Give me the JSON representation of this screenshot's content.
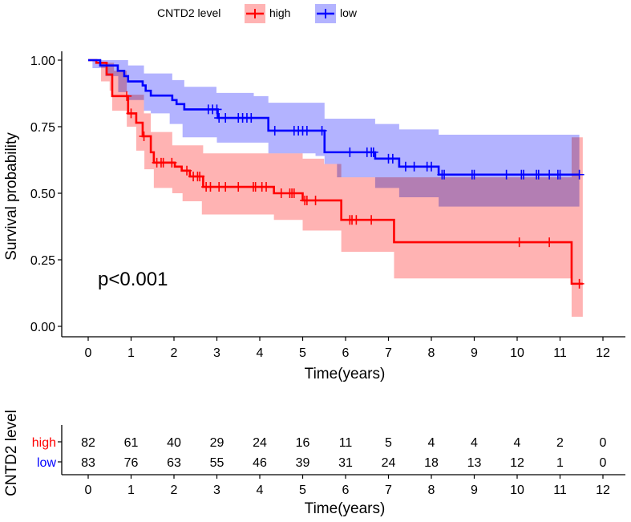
{
  "chart_data": {
    "type": "line",
    "subtype": "kaplan-meier",
    "legend": {
      "title": "CNTD2 level",
      "entries": [
        "high",
        "low"
      ],
      "placement": "top"
    },
    "colors": {
      "high": "#ff0000",
      "low": "#0000ff",
      "high_ci": "#ff9999",
      "low_ci": "#9999ff"
    },
    "xlabel": "Time(years)",
    "ylabel": "Survival probability",
    "xlim": [
      0,
      12
    ],
    "ylim": [
      0,
      1
    ],
    "xticks": [
      "0",
      "1",
      "2",
      "3",
      "4",
      "5",
      "6",
      "7",
      "8",
      "9",
      "10",
      "11",
      "12"
    ],
    "yticks": [
      "0.00",
      "0.25",
      "0.50",
      "0.75",
      "1.00"
    ],
    "annotation": "p<0.001",
    "series": [
      {
        "name": "high",
        "end": 11.53,
        "steps": [
          [
            0,
            1
          ],
          [
            0.19,
            0.99
          ],
          [
            0.43,
            0.946
          ],
          [
            0.56,
            0.865
          ],
          [
            0.93,
            0.8
          ],
          [
            1.12,
            0.765
          ],
          [
            1.27,
            0.714
          ],
          [
            1.46,
            0.654
          ],
          [
            1.53,
            0.615
          ],
          [
            2.02,
            0.6
          ],
          [
            2.18,
            0.585
          ],
          [
            2.37,
            0.563
          ],
          [
            2.68,
            0.524
          ],
          [
            4.33,
            0.5
          ],
          [
            5.0,
            0.473
          ],
          [
            5.9,
            0.4
          ],
          [
            7.13,
            0.316
          ],
          [
            11.27,
            0.16
          ]
        ],
        "upper": [
          [
            0,
            1
          ],
          [
            0.3,
            0.99
          ],
          [
            0.6,
            0.96
          ],
          [
            0.9,
            0.87
          ],
          [
            1.3,
            0.8
          ],
          [
            1.46,
            0.73
          ],
          [
            1.96,
            0.68
          ],
          [
            2.68,
            0.65
          ],
          [
            5.0,
            0.63
          ],
          [
            5.5,
            0.61
          ],
          [
            5.9,
            0.56
          ],
          [
            11.27,
            0.71
          ]
        ],
        "lower": [
          [
            0,
            1
          ],
          [
            0.3,
            0.92
          ],
          [
            0.5,
            0.885
          ],
          [
            0.56,
            0.81
          ],
          [
            0.9,
            0.75
          ],
          [
            1.12,
            0.66
          ],
          [
            1.31,
            0.59
          ],
          [
            1.53,
            0.52
          ],
          [
            1.96,
            0.5
          ],
          [
            2.2,
            0.47
          ],
          [
            2.65,
            0.42
          ],
          [
            4.33,
            0.4
          ],
          [
            5.0,
            0.36
          ],
          [
            5.9,
            0.28
          ],
          [
            7.13,
            0.18
          ],
          [
            11.27,
            0.036
          ]
        ],
        "censors": [
          0.9,
          1.0,
          1.3,
          1.6,
          1.7,
          1.75,
          1.95,
          2.3,
          2.45,
          2.55,
          2.6,
          2.75,
          2.85,
          3.05,
          3.2,
          3.5,
          3.85,
          3.9,
          4.05,
          4.15,
          4.5,
          4.7,
          4.75,
          4.8,
          5.05,
          5.1,
          5.3,
          6.1,
          6.15,
          6.25,
          6.6,
          10.05,
          10.75,
          11.45
        ]
      },
      {
        "name": "low",
        "end": 11.45,
        "steps": [
          [
            0,
            1
          ],
          [
            0.28,
            0.98
          ],
          [
            0.69,
            0.96
          ],
          [
            0.84,
            0.94
          ],
          [
            0.93,
            0.92
          ],
          [
            1.27,
            0.905
          ],
          [
            1.34,
            0.885
          ],
          [
            1.46,
            0.867
          ],
          [
            1.96,
            0.85
          ],
          [
            2.06,
            0.835
          ],
          [
            2.24,
            0.815
          ],
          [
            3.02,
            0.783
          ],
          [
            4.2,
            0.735
          ],
          [
            5.51,
            0.654
          ],
          [
            6.69,
            0.63
          ],
          [
            7.25,
            0.6
          ],
          [
            8.17,
            0.57
          ]
        ],
        "upper": [
          [
            0,
            1
          ],
          [
            0.93,
            0.98
          ],
          [
            1.3,
            0.95
          ],
          [
            1.96,
            0.925
          ],
          [
            2.24,
            0.9
          ],
          [
            2.99,
            0.877
          ],
          [
            3.86,
            0.865
          ],
          [
            4.2,
            0.84
          ],
          [
            5.51,
            0.78
          ],
          [
            6.69,
            0.76
          ],
          [
            7.25,
            0.74
          ],
          [
            8.17,
            0.72
          ]
        ],
        "lower": [
          [
            0,
            1
          ],
          [
            0.1,
            0.97
          ],
          [
            0.4,
            0.94
          ],
          [
            0.7,
            0.88
          ],
          [
            0.93,
            0.85
          ],
          [
            1.3,
            0.81
          ],
          [
            1.46,
            0.8
          ],
          [
            1.9,
            0.76
          ],
          [
            2.2,
            0.71
          ],
          [
            3.0,
            0.69
          ],
          [
            4.2,
            0.65
          ],
          [
            5.3,
            0.64
          ],
          [
            5.51,
            0.61
          ],
          [
            5.8,
            0.56
          ],
          [
            6.69,
            0.52
          ],
          [
            7.25,
            0.485
          ],
          [
            8.17,
            0.45
          ]
        ],
        "censors": [
          2.8,
          2.9,
          3.0,
          3.05,
          3.2,
          3.5,
          3.6,
          3.7,
          3.8,
          4.35,
          4.8,
          4.9,
          5.0,
          5.1,
          5.45,
          6.1,
          6.5,
          6.6,
          6.65,
          7.0,
          7.1,
          7.4,
          7.6,
          7.9,
          8.0,
          8.25,
          8.3,
          8.95,
          9.0,
          9.75,
          10.1,
          10.15,
          10.45,
          10.5,
          10.75,
          10.95,
          11.0,
          11.45
        ]
      }
    ],
    "risk_table": {
      "ylabel": "CNTD2 level",
      "xlabel": "Time(years)",
      "times": [
        "0",
        "1",
        "2",
        "3",
        "4",
        "5",
        "6",
        "7",
        "8",
        "9",
        "10",
        "11",
        "12"
      ],
      "rows": [
        {
          "name": "high",
          "values": [
            "82",
            "61",
            "40",
            "29",
            "24",
            "16",
            "11",
            "5",
            "4",
            "4",
            "4",
            "2",
            "0"
          ]
        },
        {
          "name": "low",
          "values": [
            "83",
            "76",
            "63",
            "55",
            "46",
            "39",
            "31",
            "24",
            "18",
            "13",
            "12",
            "1",
            "0"
          ]
        }
      ]
    }
  }
}
